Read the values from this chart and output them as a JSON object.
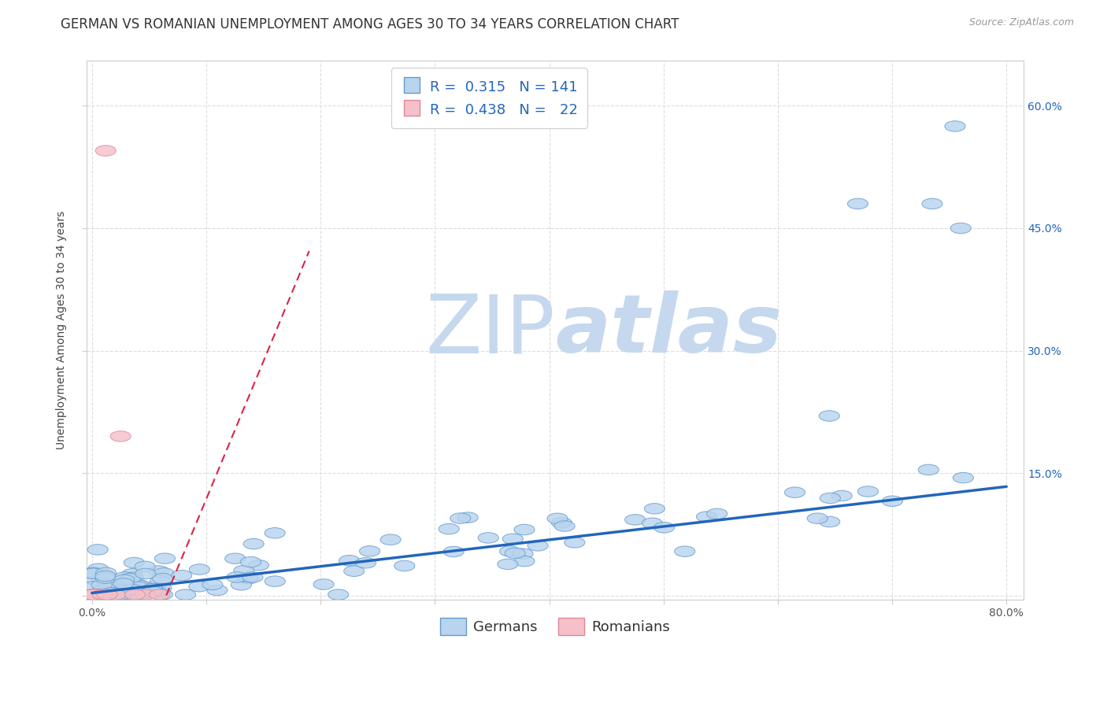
{
  "title": "GERMAN VS ROMANIAN UNEMPLOYMENT AMONG AGES 30 TO 34 YEARS CORRELATION CHART",
  "source": "Source: ZipAtlas.com",
  "ylabel": "Unemployment Among Ages 30 to 34 years",
  "xlim": [
    -0.005,
    0.815
  ],
  "ylim": [
    -0.005,
    0.655
  ],
  "xticks": [
    0.0,
    0.1,
    0.2,
    0.3,
    0.4,
    0.5,
    0.6,
    0.7,
    0.8
  ],
  "xticklabels": [
    "0.0%",
    "",
    "",
    "",
    "",
    "",
    "",
    "",
    "80.0%"
  ],
  "yticks": [
    0.0,
    0.15,
    0.3,
    0.45,
    0.6
  ],
  "yticklabels": [
    "",
    "15.0%",
    "30.0%",
    "45.0%",
    "60.0%"
  ],
  "german_face_color": "#b8d4ee",
  "german_edge_color": "#6699cc",
  "romanian_face_color": "#f5c0c8",
  "romanian_edge_color": "#dd8899",
  "german_trend_color": "#2266bb",
  "romanian_trend_color": "#dd2244",
  "watermark_zip_color": "#c5d8ee",
  "watermark_atlas_color": "#c5d8ee",
  "background_color": "#ffffff",
  "grid_color": "#e0e0e0",
  "grid_style": "--",
  "german_intercept": 0.003,
  "german_slope": 0.163,
  "romanian_intercept": -0.3,
  "romanian_slope": 3.8,
  "title_fontsize": 12,
  "axis_fontsize": 10,
  "tick_fontsize": 10,
  "legend_fontsize": 13,
  "source_fontsize": 9
}
